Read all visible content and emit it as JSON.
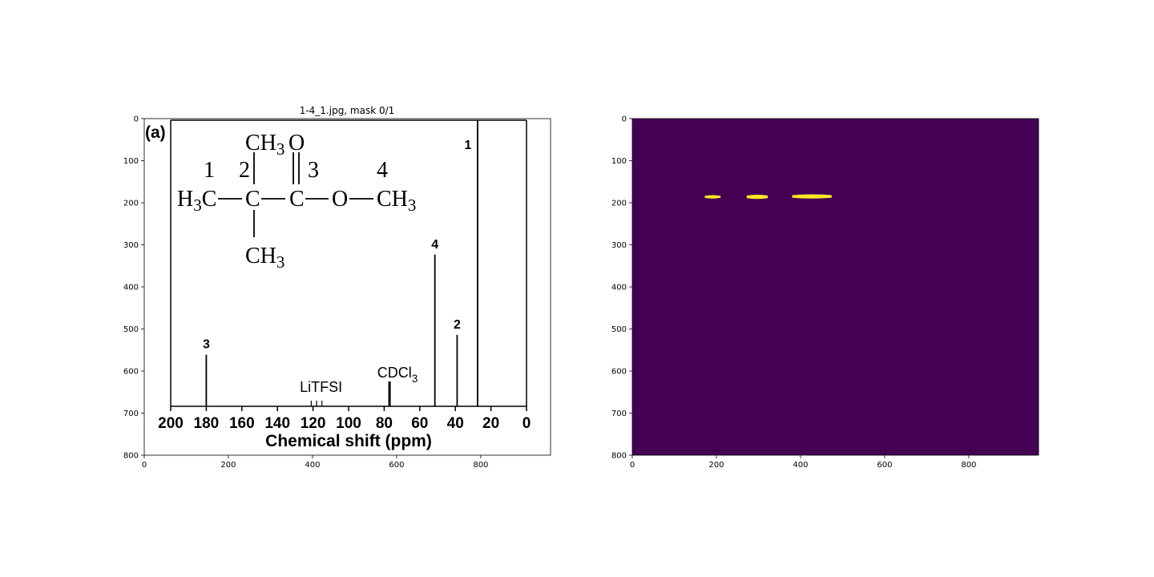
{
  "chart_data": [
    {
      "type": "image",
      "title": "1-4_1.jpg, mask 0/1",
      "xlim": [
        0,
        966
      ],
      "ylim": [
        800,
        0
      ],
      "x_ticks": [
        "0",
        "200",
        "400",
        "600",
        "800"
      ],
      "y_ticks": [
        "0",
        "100",
        "200",
        "300",
        "400",
        "500",
        "600",
        "700",
        "800"
      ],
      "image_content": {
        "panel_label": "(a)",
        "structure": {
          "top_methyl": "CH3",
          "carbonyl_o": "O",
          "site_labels": [
            "1",
            "2",
            "3",
            "4"
          ],
          "left_methyl": "H3C",
          "carbon": "C",
          "carbonyl_carbon": "C",
          "ester_o": "O",
          "right_methyl": "CH3",
          "bottom_methyl": "CH3"
        },
        "spectrum": {
          "xlabel": "Chemical shift (ppm)",
          "x_ticks": [
            "200",
            "180",
            "160",
            "140",
            "120",
            "100",
            "80",
            "60",
            "40",
            "20",
            "0"
          ],
          "peaks": [
            {
              "label": "1",
              "ppm": 27.5,
              "height": 1.0
            },
            {
              "label": "2",
              "ppm": 39.0,
              "height": 0.25
            },
            {
              "label": "3",
              "ppm": 180.0,
              "height": 0.18
            },
            {
              "label": "4",
              "ppm": 51.5,
              "height": 0.53
            }
          ],
          "annotations": [
            {
              "text": "LiTFSI",
              "ppm": 120.0
            },
            {
              "text": "CDCl3",
              "ppm": 77.0
            }
          ]
        }
      }
    },
    {
      "type": "heatmap",
      "title": "",
      "colormap": "viridis",
      "background_color": "#440154",
      "mask_color": "#fde725",
      "xlim": [
        0,
        966
      ],
      "ylim": [
        800,
        0
      ],
      "x_ticks": [
        "0",
        "200",
        "400",
        "600",
        "800"
      ],
      "y_ticks": [
        "0",
        "100",
        "200",
        "300",
        "400",
        "500",
        "600",
        "700",
        "800"
      ],
      "mask_regions": [
        {
          "x": [
            172,
            210
          ],
          "y": [
            182,
            190
          ]
        },
        {
          "x": [
            272,
            322
          ],
          "y": [
            181,
            191
          ]
        },
        {
          "x": [
            380,
            474
          ],
          "y": [
            180,
            190
          ]
        }
      ]
    }
  ]
}
